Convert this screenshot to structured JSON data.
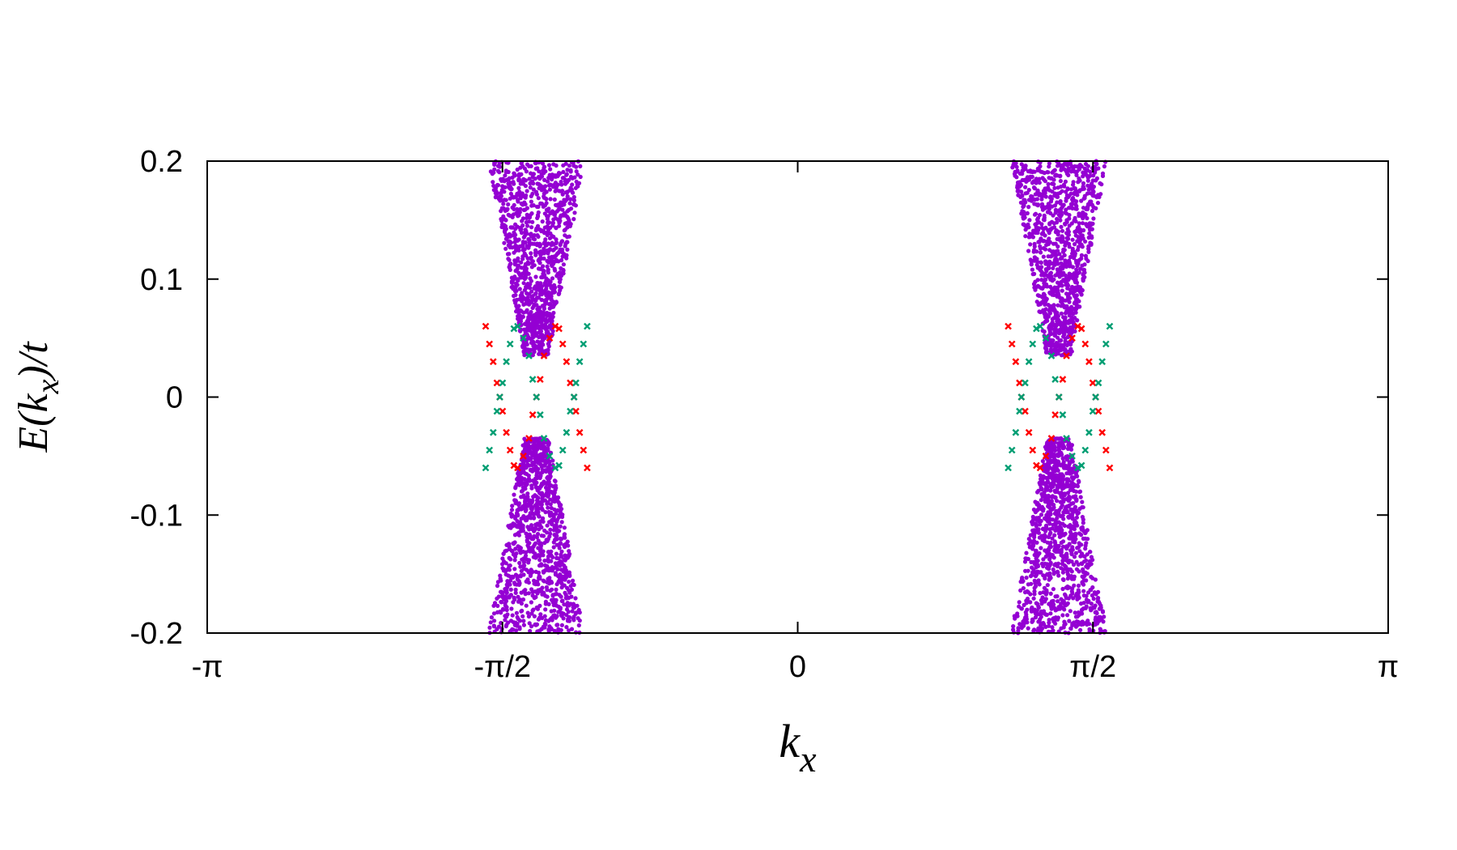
{
  "chart_data": {
    "type": "scatter",
    "title": "",
    "xlabel": {
      "main": "k",
      "sub": "x"
    },
    "ylabel": {
      "pre": "E(",
      "main": "k",
      "sub": "x",
      "post": ")/",
      "tail": "t"
    },
    "xlim": [
      -3.14159,
      3.14159
    ],
    "ylim": [
      -0.2,
      0.2
    ],
    "x_ticks": [
      {
        "value": -3.14159,
        "label": "-π"
      },
      {
        "value": -1.5708,
        "label": "-π/2"
      },
      {
        "value": 0,
        "label": "0"
      },
      {
        "value": 1.5708,
        "label": "π/2"
      },
      {
        "value": 3.14159,
        "label": "π"
      }
    ],
    "y_ticks": [
      {
        "value": -0.2,
        "label": "-0.2"
      },
      {
        "value": -0.1,
        "label": "-0.1"
      },
      {
        "value": 0,
        "label": "0"
      },
      {
        "value": 0.1,
        "label": "0.1"
      },
      {
        "value": 0.2,
        "label": "0.2"
      }
    ],
    "grid": false,
    "legend": "none",
    "series": [
      {
        "kind": "bulk-band",
        "color": "#9400d3",
        "regions": [
          {
            "center": -1.39,
            "gap_half_width": 0.065,
            "gap_energy": 0.035,
            "edge_half_width": 0.255,
            "edge_energy": 0.2
          },
          {
            "center": 1.39,
            "gap_half_width": 0.065,
            "gap_energy": 0.035,
            "edge_half_width": 0.255,
            "edge_energy": 0.2
          }
        ]
      },
      {
        "kind": "edge-state",
        "color": "#ff0000",
        "points": [
          [
            -1.66,
            0.06
          ],
          [
            -1.64,
            0.045
          ],
          [
            -1.62,
            0.03
          ],
          [
            -1.6,
            0.012
          ],
          [
            -1.585,
            0.0
          ],
          [
            -1.57,
            -0.012
          ],
          [
            -1.55,
            -0.03
          ],
          [
            -1.53,
            -0.045
          ],
          [
            -1.51,
            -0.058
          ],
          [
            -1.49,
            -0.06
          ],
          [
            -1.46,
            -0.05
          ],
          [
            -1.43,
            -0.035
          ],
          [
            -1.41,
            -0.015
          ],
          [
            -1.39,
            0.0
          ],
          [
            -1.37,
            0.015
          ],
          [
            -1.35,
            0.035
          ],
          [
            -1.32,
            0.05
          ],
          [
            -1.29,
            0.06
          ],
          [
            -1.27,
            0.058
          ],
          [
            -1.25,
            0.045
          ],
          [
            -1.23,
            0.03
          ],
          [
            -1.21,
            0.012
          ],
          [
            -1.19,
            0.0
          ],
          [
            -1.18,
            -0.012
          ],
          [
            -1.16,
            -0.03
          ],
          [
            -1.14,
            -0.045
          ],
          [
            -1.12,
            -0.06
          ],
          [
            1.12,
            0.06
          ],
          [
            1.14,
            0.045
          ],
          [
            1.16,
            0.03
          ],
          [
            1.18,
            0.012
          ],
          [
            1.19,
            0.0
          ],
          [
            1.21,
            -0.012
          ],
          [
            1.23,
            -0.03
          ],
          [
            1.25,
            -0.045
          ],
          [
            1.27,
            -0.058
          ],
          [
            1.29,
            -0.06
          ],
          [
            1.32,
            -0.05
          ],
          [
            1.35,
            -0.035
          ],
          [
            1.37,
            -0.015
          ],
          [
            1.39,
            0.0
          ],
          [
            1.41,
            0.015
          ],
          [
            1.43,
            0.035
          ],
          [
            1.46,
            0.05
          ],
          [
            1.49,
            0.06
          ],
          [
            1.51,
            0.058
          ],
          [
            1.53,
            0.045
          ],
          [
            1.55,
            0.03
          ],
          [
            1.57,
            0.012
          ],
          [
            1.585,
            0.0
          ],
          [
            1.6,
            -0.012
          ],
          [
            1.62,
            -0.03
          ],
          [
            1.64,
            -0.045
          ],
          [
            1.66,
            -0.06
          ]
        ]
      },
      {
        "kind": "edge-state",
        "color": "#009e73",
        "points": [
          [
            -1.66,
            -0.06
          ],
          [
            -1.64,
            -0.045
          ],
          [
            -1.62,
            -0.03
          ],
          [
            -1.6,
            -0.012
          ],
          [
            -1.585,
            0.0
          ],
          [
            -1.57,
            0.012
          ],
          [
            -1.55,
            0.03
          ],
          [
            -1.53,
            0.045
          ],
          [
            -1.51,
            0.058
          ],
          [
            -1.49,
            0.06
          ],
          [
            -1.46,
            0.05
          ],
          [
            -1.43,
            0.035
          ],
          [
            -1.41,
            0.015
          ],
          [
            -1.39,
            0.0
          ],
          [
            -1.37,
            -0.015
          ],
          [
            -1.35,
            -0.035
          ],
          [
            -1.32,
            -0.05
          ],
          [
            -1.29,
            -0.06
          ],
          [
            -1.27,
            -0.058
          ],
          [
            -1.25,
            -0.045
          ],
          [
            -1.23,
            -0.03
          ],
          [
            -1.21,
            -0.012
          ],
          [
            -1.19,
            0.0
          ],
          [
            -1.18,
            0.012
          ],
          [
            -1.16,
            0.03
          ],
          [
            -1.14,
            0.045
          ],
          [
            -1.12,
            0.06
          ],
          [
            1.12,
            -0.06
          ],
          [
            1.14,
            -0.045
          ],
          [
            1.16,
            -0.03
          ],
          [
            1.18,
            -0.012
          ],
          [
            1.19,
            0.0
          ],
          [
            1.21,
            0.012
          ],
          [
            1.23,
            0.03
          ],
          [
            1.25,
            0.045
          ],
          [
            1.27,
            0.058
          ],
          [
            1.29,
            0.06
          ],
          [
            1.32,
            0.05
          ],
          [
            1.35,
            0.035
          ],
          [
            1.37,
            0.015
          ],
          [
            1.39,
            0.0
          ],
          [
            1.41,
            -0.015
          ],
          [
            1.43,
            -0.035
          ],
          [
            1.46,
            -0.05
          ],
          [
            1.49,
            -0.06
          ],
          [
            1.51,
            -0.058
          ],
          [
            1.53,
            -0.045
          ],
          [
            1.55,
            -0.03
          ],
          [
            1.57,
            -0.012
          ],
          [
            1.585,
            0.0
          ],
          [
            1.6,
            0.012
          ],
          [
            1.62,
            0.03
          ],
          [
            1.64,
            0.045
          ],
          [
            1.66,
            0.06
          ]
        ]
      }
    ]
  }
}
